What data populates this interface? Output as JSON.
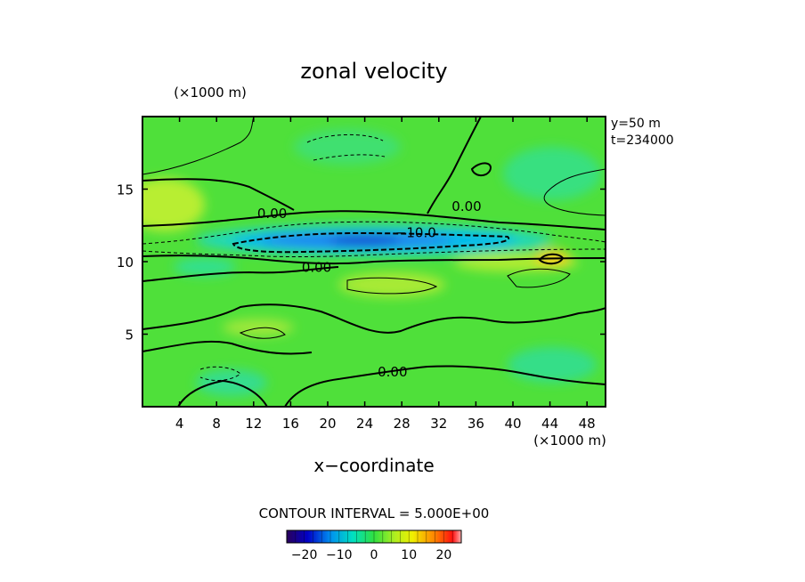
{
  "chart_data": {
    "type": "heatmap",
    "title": "zonal velocity",
    "xlabel": "x−coordinate",
    "x_unit": "(×1000 m)",
    "y_unit": "(×1000 m)",
    "xlim": [
      0,
      50
    ],
    "ylim": [
      0,
      20
    ],
    "x_ticks": [
      4,
      8,
      12,
      16,
      20,
      24,
      28,
      32,
      36,
      40,
      44,
      48
    ],
    "y_ticks": [
      5,
      10,
      15
    ],
    "info": [
      "y=50  m",
      "t=234000"
    ],
    "contour_interval_text": "CONTOUR INTERVAL = 5.000E+00",
    "contour_labels": [
      {
        "text": "0.00",
        "x": 14,
        "y": 13.3
      },
      {
        "text": "0.00",
        "x": 35,
        "y": 13.8
      },
      {
        "text": "−10.0",
        "x": 29.5,
        "y": 12.0
      },
      {
        "text": "0.00",
        "x": 18.8,
        "y": 9.6
      },
      {
        "text": "0.00",
        "x": 27,
        "y": 2.4
      }
    ],
    "colorbar": {
      "min": -25,
      "max": 25,
      "tick_values": [
        -20,
        -10,
        0,
        10,
        20
      ],
      "tick_labels": [
        "−20",
        "−10",
        "0",
        "10",
        "20"
      ]
    },
    "field_features": [
      {
        "kind": "jet_min",
        "x": 25,
        "y": 11.5,
        "value": -22
      },
      {
        "kind": "local_max",
        "x": 44.5,
        "y": 10.3,
        "value": 15
      },
      {
        "kind": "local_max",
        "x": 2,
        "y": 13.5,
        "value": 8
      },
      {
        "kind": "local_max",
        "x": 27,
        "y": 8.5,
        "value": 7
      },
      {
        "kind": "local_min",
        "x": 41,
        "y": 16.5,
        "value": -6
      },
      {
        "kind": "local_min",
        "x": 11,
        "y": 2,
        "value": -6
      }
    ]
  }
}
